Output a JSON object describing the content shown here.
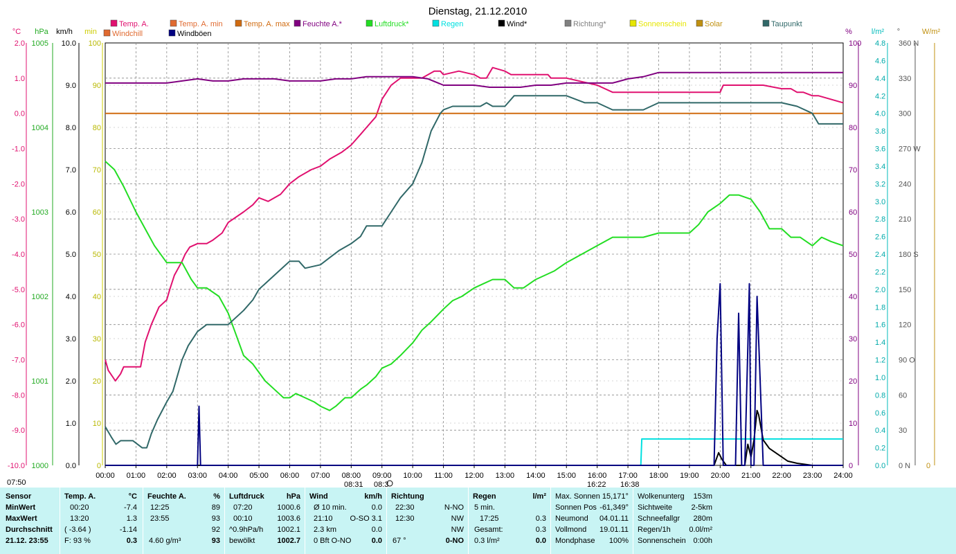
{
  "title": "Dienstag, 21.12.2010",
  "legend": [
    {
      "name": "Temp. A.",
      "color": "#e0106f"
    },
    {
      "name": "Temp. A. min",
      "color": "#e06a30"
    },
    {
      "name": "Temp. A. max",
      "color": "#d06b10"
    },
    {
      "name": "Feuchte A.*",
      "color": "#800080"
    },
    {
      "name": "Luftdruck*",
      "color": "#22dd22"
    },
    {
      "name": "Regen",
      "color": "#00e0e0"
    },
    {
      "name": "Wind*",
      "color": "#000000"
    },
    {
      "name": "Richtung*",
      "color": "#808080"
    },
    {
      "name": "Sonnenschein",
      "color": "#e6e600"
    },
    {
      "name": "Solar",
      "color": "#c09010"
    },
    {
      "name": "Taupunkt",
      "color": "#306868"
    },
    {
      "name": "Windchill",
      "color": "#e06a30"
    },
    {
      "name": "Windböen",
      "color": "#000080"
    }
  ],
  "axis_units": {
    "c": "°C",
    "hpa": "hPa",
    "kmh": "km/h",
    "min": "min",
    "pct": "%",
    "lm2": "l/m²",
    "deg": "°",
    "wm2": "W/m²"
  },
  "axes": {
    "c": [
      "2.0",
      "1.0",
      "0.0",
      "-1.0",
      "-2.0",
      "-3.0",
      "-4.0",
      "-5.0",
      "-6.0",
      "-7.0",
      "-8.0",
      "-9.0",
      "-10.0"
    ],
    "hpa": [
      "1005",
      "1004",
      "1003",
      "1002",
      "1001",
      "1000"
    ],
    "kmh": [
      "10.0",
      "9.0",
      "8.0",
      "7.0",
      "6.0",
      "5.0",
      "4.0",
      "3.0",
      "2.0",
      "1.0",
      "0.0"
    ],
    "min": [
      "100",
      "90",
      "80",
      "70",
      "60",
      "50",
      "40",
      "30",
      "20",
      "10",
      "0"
    ],
    "pct": [
      "100",
      "90",
      "80",
      "70",
      "60",
      "50",
      "40",
      "30",
      "20",
      "10",
      "0"
    ],
    "lm2": [
      "4.8",
      "4.6",
      "4.4",
      "4.2",
      "4.0",
      "3.8",
      "3.6",
      "3.4",
      "3.2",
      "3.0",
      "2.8",
      "2.6",
      "2.4",
      "2.2",
      "2.0",
      "1.8",
      "1.6",
      "1.4",
      "1.2",
      "1.0",
      "0.8",
      "0.6",
      "0.4",
      "0.2",
      "0.0"
    ],
    "deg": [
      "360 N",
      "330",
      "300",
      "270 W",
      "240",
      "210",
      "180 S",
      "150",
      "120",
      "90  O",
      "60",
      "30",
      "0 N"
    ],
    "wm2": [
      "0"
    ],
    "x": [
      "00:00",
      "01:00",
      "02:00",
      "03:00",
      "04:00",
      "05:00",
      "06:00",
      "07:00",
      "08:00",
      "09:00",
      "10:00",
      "11:00",
      "12:00",
      "13:00",
      "14:00",
      "15:00",
      "16:00",
      "17:00",
      "18:00",
      "19:00",
      "20:00",
      "21:00",
      "22:00",
      "23:00",
      "24:00"
    ]
  },
  "sun_labels": {
    "topleft": "07:50",
    "rise": "08:31",
    "rise2": "08:3",
    "set": "16:22",
    "set2": "16:38"
  },
  "chart_data": {
    "type": "line",
    "x_unit": "hours",
    "xlim": [
      0,
      24
    ],
    "series": [
      {
        "name": "Temp. A.",
        "unit": "°C",
        "ylim": [
          -10,
          2
        ],
        "color": "#e0106f",
        "x": [
          0,
          0.1,
          0.33,
          0.5,
          0.6,
          0.75,
          1.15,
          1.3,
          1.5,
          1.75,
          2.0,
          2.1,
          2.25,
          2.5,
          2.6,
          2.75,
          3.0,
          3.3,
          3.5,
          3.8,
          4.0,
          4.5,
          4.8,
          5.0,
          5.3,
          5.7,
          6.0,
          6.3,
          6.7,
          7.0,
          7.3,
          7.7,
          8.0,
          8.3,
          8.5,
          8.8,
          9.0,
          9.3,
          9.6,
          10.0,
          10.3,
          10.5,
          10.7,
          10.9,
          11.0,
          11.5,
          12.0,
          12.2,
          12.4,
          12.6,
          13.0,
          13.2,
          13.4,
          13.8,
          14.4,
          14.5,
          14.9,
          15.0,
          16.0,
          16.5,
          16.6,
          17.0,
          17.5,
          18.0,
          19.0,
          20.0,
          20.1,
          21.0,
          21.4,
          22.0,
          22.3,
          22.5,
          22.7,
          23.0,
          23.2,
          24.0
        ],
        "y": [
          -7.0,
          -7.3,
          -7.6,
          -7.4,
          -7.2,
          -7.2,
          -7.2,
          -6.5,
          -6.0,
          -5.5,
          -5.3,
          -5.0,
          -4.6,
          -4.2,
          -4.0,
          -3.8,
          -3.7,
          -3.7,
          -3.6,
          -3.4,
          -3.1,
          -2.8,
          -2.6,
          -2.4,
          -2.5,
          -2.3,
          -2.0,
          -1.8,
          -1.6,
          -1.5,
          -1.3,
          -1.1,
          -0.9,
          -0.6,
          -0.4,
          -0.1,
          0.4,
          0.8,
          1.0,
          1.0,
          1.0,
          1.1,
          1.2,
          1.2,
          1.1,
          1.2,
          1.1,
          1.0,
          1.0,
          1.3,
          1.2,
          1.1,
          1.1,
          1.1,
          1.1,
          1.0,
          1.0,
          1.0,
          0.8,
          0.6,
          0.6,
          0.6,
          0.6,
          0.6,
          0.6,
          0.6,
          0.8,
          0.8,
          0.8,
          0.7,
          0.7,
          0.6,
          0.6,
          0.5,
          0.5,
          0.3
        ]
      },
      {
        "name": "Temp. A. max",
        "unit": "°C",
        "ylim": [
          -10,
          2
        ],
        "color": "#d06b10",
        "x": [
          0,
          24
        ],
        "y": [
          0.0,
          0.0
        ]
      },
      {
        "name": "Feuchte A.*",
        "unit": "%",
        "ylim": [
          0,
          100
        ],
        "color": "#800080",
        "x": [
          0,
          1,
          2,
          2.5,
          3,
          3.5,
          4,
          4.5,
          5,
          5.5,
          6,
          6.5,
          7,
          7.5,
          8,
          8.5,
          9,
          9.5,
          10,
          10.5,
          11,
          11.5,
          12,
          12.5,
          13,
          13.5,
          14,
          14.5,
          15,
          15.5,
          16,
          16.5,
          17,
          17.5,
          18,
          19,
          20,
          21,
          22,
          23,
          24
        ],
        "y": [
          90.5,
          90.5,
          90.5,
          91,
          91.5,
          91,
          91,
          91.5,
          91.5,
          91.5,
          91,
          91,
          91,
          91.5,
          91.5,
          92,
          92,
          92,
          92,
          91.5,
          90,
          90,
          90,
          89.5,
          89.5,
          89.5,
          90,
          90,
          90.5,
          90.5,
          90.5,
          90.5,
          91.5,
          92,
          93,
          93,
          93,
          93,
          93,
          93,
          93
        ]
      },
      {
        "name": "Luftdruck*",
        "unit": "hPa",
        "ylim": [
          1000,
          1005
        ],
        "color": "#22dd22",
        "x": [
          0,
          0.3,
          0.6,
          1.0,
          1.3,
          1.6,
          2.0,
          2.2,
          2.5,
          2.8,
          3.0,
          3.3,
          3.7,
          4.0,
          4.2,
          4.5,
          4.8,
          5.2,
          5.5,
          5.8,
          6.0,
          6.2,
          6.5,
          6.8,
          7.0,
          7.3,
          7.5,
          7.8,
          8.0,
          8.3,
          8.5,
          8.8,
          9.0,
          9.3,
          9.6,
          10.0,
          10.3,
          10.6,
          11.0,
          11.3,
          11.6,
          12.0,
          12.3,
          12.6,
          13.0,
          13.3,
          13.6,
          14.0,
          14.3,
          14.6,
          15.0,
          15.5,
          16.0,
          16.5,
          17.0,
          17.5,
          18.0,
          18.5,
          19.0,
          19.3,
          19.6,
          20.0,
          20.3,
          20.6,
          21.0,
          21.3,
          21.6,
          22.0,
          22.3,
          22.6,
          23.0,
          23.3,
          23.6,
          24.0
        ],
        "y": [
          1003.6,
          1003.5,
          1003.3,
          1003.0,
          1002.8,
          1002.6,
          1002.4,
          1002.4,
          1002.4,
          1002.2,
          1002.1,
          1002.1,
          1002.0,
          1001.8,
          1001.6,
          1001.3,
          1001.2,
          1001.0,
          1000.9,
          1000.8,
          1000.8,
          1000.85,
          1000.8,
          1000.75,
          1000.7,
          1000.65,
          1000.7,
          1000.8,
          1000.8,
          1000.9,
          1000.95,
          1001.05,
          1001.15,
          1001.2,
          1001.3,
          1001.45,
          1001.6,
          1001.7,
          1001.85,
          1001.95,
          1002.0,
          1002.1,
          1002.15,
          1002.2,
          1002.2,
          1002.1,
          1002.1,
          1002.2,
          1002.25,
          1002.3,
          1002.4,
          1002.5,
          1002.6,
          1002.7,
          1002.7,
          1002.7,
          1002.75,
          1002.75,
          1002.75,
          1002.85,
          1003.0,
          1003.1,
          1003.2,
          1003.2,
          1003.15,
          1003.0,
          1002.8,
          1002.8,
          1002.7,
          1002.7,
          1002.6,
          1002.7,
          1002.65,
          1002.6
        ]
      },
      {
        "name": "Regen",
        "unit": "l/m²",
        "ylim": [
          0,
          4.8
        ],
        "color": "#00e0e0",
        "x": [
          0,
          17.3,
          17.42,
          17.45,
          24
        ],
        "y": [
          0,
          0,
          0,
          0.3,
          0.3
        ]
      },
      {
        "name": "Wind*",
        "unit": "km/h",
        "ylim": [
          0,
          10
        ],
        "color": "#000000",
        "x": [
          0,
          19.8,
          19.95,
          20.05,
          20.2,
          20.3,
          20.8,
          20.9,
          21.0,
          21.1,
          21.2,
          21.25,
          21.4,
          21.6,
          21.8,
          22.0,
          22.2,
          22.5,
          23.0,
          24.0
        ],
        "y": [
          0,
          0,
          0.3,
          0.15,
          0,
          0,
          0,
          0.5,
          0.2,
          0.6,
          1.3,
          1.2,
          0.6,
          0.4,
          0.3,
          0.2,
          0.1,
          0.05,
          0,
          0
        ]
      },
      {
        "name": "Windböen",
        "unit": "km/h",
        "ylim": [
          0,
          10
        ],
        "color": "#000080",
        "x": [
          0,
          3.0,
          3.05,
          3.1,
          3.2,
          19.8,
          19.9,
          20.0,
          20.1,
          20.3,
          20.5,
          20.6,
          20.7,
          20.8,
          20.9,
          20.95,
          21.0,
          21.1,
          21.2,
          21.3,
          21.4,
          24.0
        ],
        "y": [
          0,
          0,
          1.4,
          0,
          0,
          0,
          3.0,
          4.3,
          0,
          0,
          0,
          3.6,
          0,
          0,
          2.8,
          4.3,
          0,
          0,
          4.0,
          2.0,
          0,
          0
        ]
      },
      {
        "name": "Taupunkt",
        "unit": "°C",
        "ylim": [
          -10,
          2
        ],
        "color": "#306868",
        "x": [
          0,
          0.2,
          0.35,
          0.5,
          0.7,
          0.9,
          1.2,
          1.35,
          1.5,
          1.7,
          2.0,
          2.2,
          2.5,
          2.7,
          3.0,
          3.3,
          3.5,
          4.0,
          4.5,
          4.8,
          5.0,
          5.5,
          6.0,
          6.3,
          6.5,
          7.0,
          7.3,
          7.6,
          8.0,
          8.3,
          8.5,
          9.0,
          9.3,
          9.6,
          10.0,
          10.3,
          10.6,
          10.9,
          11.0,
          11.3,
          11.6,
          12.0,
          12.2,
          12.4,
          12.6,
          12.8,
          13.0,
          13.3,
          13.6,
          14.0,
          14.3,
          14.6,
          15.0,
          15.6,
          16.0,
          16.5,
          17.0,
          17.5,
          18.0,
          19.0,
          20.0,
          21.0,
          21.5,
          22.0,
          22.5,
          23.0,
          23.2,
          24.0
        ],
        "y": [
          -8.9,
          -9.2,
          -9.4,
          -9.3,
          -9.3,
          -9.3,
          -9.5,
          -9.5,
          -9.1,
          -8.7,
          -8.2,
          -7.9,
          -7.0,
          -6.6,
          -6.2,
          -6.0,
          -6.0,
          -6.0,
          -5.6,
          -5.3,
          -5.0,
          -4.6,
          -4.2,
          -4.2,
          -4.4,
          -4.3,
          -4.1,
          -3.9,
          -3.7,
          -3.5,
          -3.2,
          -3.2,
          -2.8,
          -2.4,
          -2.0,
          -1.4,
          -0.5,
          0.0,
          0.1,
          0.2,
          0.2,
          0.2,
          0.2,
          0.3,
          0.2,
          0.2,
          0.2,
          0.5,
          0.5,
          0.5,
          0.5,
          0.5,
          0.5,
          0.3,
          0.3,
          0.1,
          0.1,
          0.1,
          0.3,
          0.3,
          0.3,
          0.3,
          0.3,
          0.3,
          0.2,
          0.0,
          -0.3,
          -0.3
        ]
      }
    ]
  },
  "stats": {
    "sensor": {
      "h": "Sensor",
      "min": "MinWert",
      "max": "MaxWert",
      "avg": "Durchschnitt",
      "date": "21.12. 23:55"
    },
    "temp": {
      "h": "Temp. A.",
      "unit": "°C",
      "min_t": "00:20",
      "min_v": "-7.4",
      "max_t": "13:20",
      "max_v": "1.3",
      "avg_a": "( -3.64 )",
      "avg_v": "-1.14",
      "f": "F: 93 %",
      "cur": "0.3"
    },
    "hum": {
      "h": "Feuchte A.",
      "unit": "%",
      "min_t": "12:25",
      "min_v": "89",
      "max_t": "23:55",
      "max_v": "93",
      "avg_v": "92",
      "abs": "4.60 g/m³",
      "cur": "93"
    },
    "press": {
      "h": "Luftdruck",
      "unit": "hPa",
      "min_t": "07:20",
      "min_v": "1000.6",
      "max_t": "00:10",
      "max_v": "1003.6",
      "trend": "^0.9hPa/h",
      "trend_v": "1002.1",
      "state": "bewölkt",
      "cur": "1002.7"
    },
    "wind": {
      "h": "Wind",
      "unit": "km/h",
      "r1a": "Ø 10 min.",
      "r1b": "0.0",
      "r2a": "21:10",
      "r2b": "O-SO 3.1",
      "r3a": "2.3 km",
      "r3b": "0.0",
      "r4a": "0 Bft O-NO",
      "cur": "0.0"
    },
    "dir": {
      "h": "Richtung",
      "r1a": "22:30",
      "r1b": "N-NO",
      "r2a": "12:30",
      "r2b": "NW",
      "r3b": "NW",
      "r4a": "67 °",
      "cur": "0-NO"
    },
    "rain": {
      "h": "Regen",
      "unit": "l/m²",
      "r1a": "5 min.",
      "r2a": "17:25",
      "r2b": "0.3",
      "r3a": "Gesamt:",
      "r3b": "0.3",
      "r4a": "0.3 l/m²",
      "cur": "0.0"
    },
    "astro": {
      "r1": "Max. Sonnen 15,171°",
      "r2a": "Sonnen Pos",
      "r2b": "-61,349°",
      "r3a": "Neumond",
      "r3b": "04.01.11",
      "r4a": "Vollmond",
      "r4b": "19.01.11",
      "r5a": "Mondphase",
      "r5b": "100%"
    },
    "weather": {
      "r1a": "Wolkenunterg",
      "r1b": "153m",
      "r2a": "Sichtweite",
      "r2b": "2-5km",
      "r3a": "Schneefallgr",
      "r3b": "280m",
      "r4a": "Regen/1h",
      "r4b": "0.0l/m²",
      "r5a": "Sonnenschein",
      "r5b": "0:00h"
    }
  }
}
